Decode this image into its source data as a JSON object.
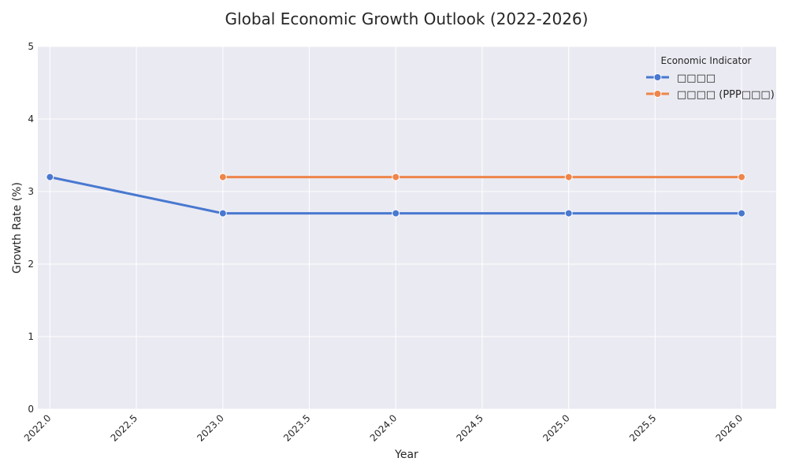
{
  "chart_data": {
    "type": "line",
    "title": "Global Economic Growth Outlook (2022-2026)",
    "xlabel": "Year",
    "ylabel": "Growth Rate (%)",
    "xlim": [
      2021.93,
      2026.2
    ],
    "ylim": [
      0,
      5
    ],
    "xticks": [
      "2022.0",
      "2022.5",
      "2023.0",
      "2023.5",
      "2024.0",
      "2024.5",
      "2025.0",
      "2025.5",
      "2026.0"
    ],
    "yticks": [
      "0",
      "1",
      "2",
      "3",
      "4",
      "5"
    ],
    "grid": true,
    "legend": {
      "title": "Economic Indicator",
      "placement": "top-right"
    },
    "series": [
      {
        "name": "□□□□",
        "color": "#4878d0",
        "x": [
          2022,
          2023,
          2024,
          2025,
          2026
        ],
        "y": [
          3.2,
          2.7,
          2.7,
          2.7,
          2.7
        ]
      },
      {
        "name": "□□□□ (PPP□□□)",
        "color": "#ee854a",
        "x": [
          2023,
          2024,
          2025,
          2026
        ],
        "y": [
          3.2,
          3.2,
          3.2,
          3.2
        ]
      }
    ]
  }
}
